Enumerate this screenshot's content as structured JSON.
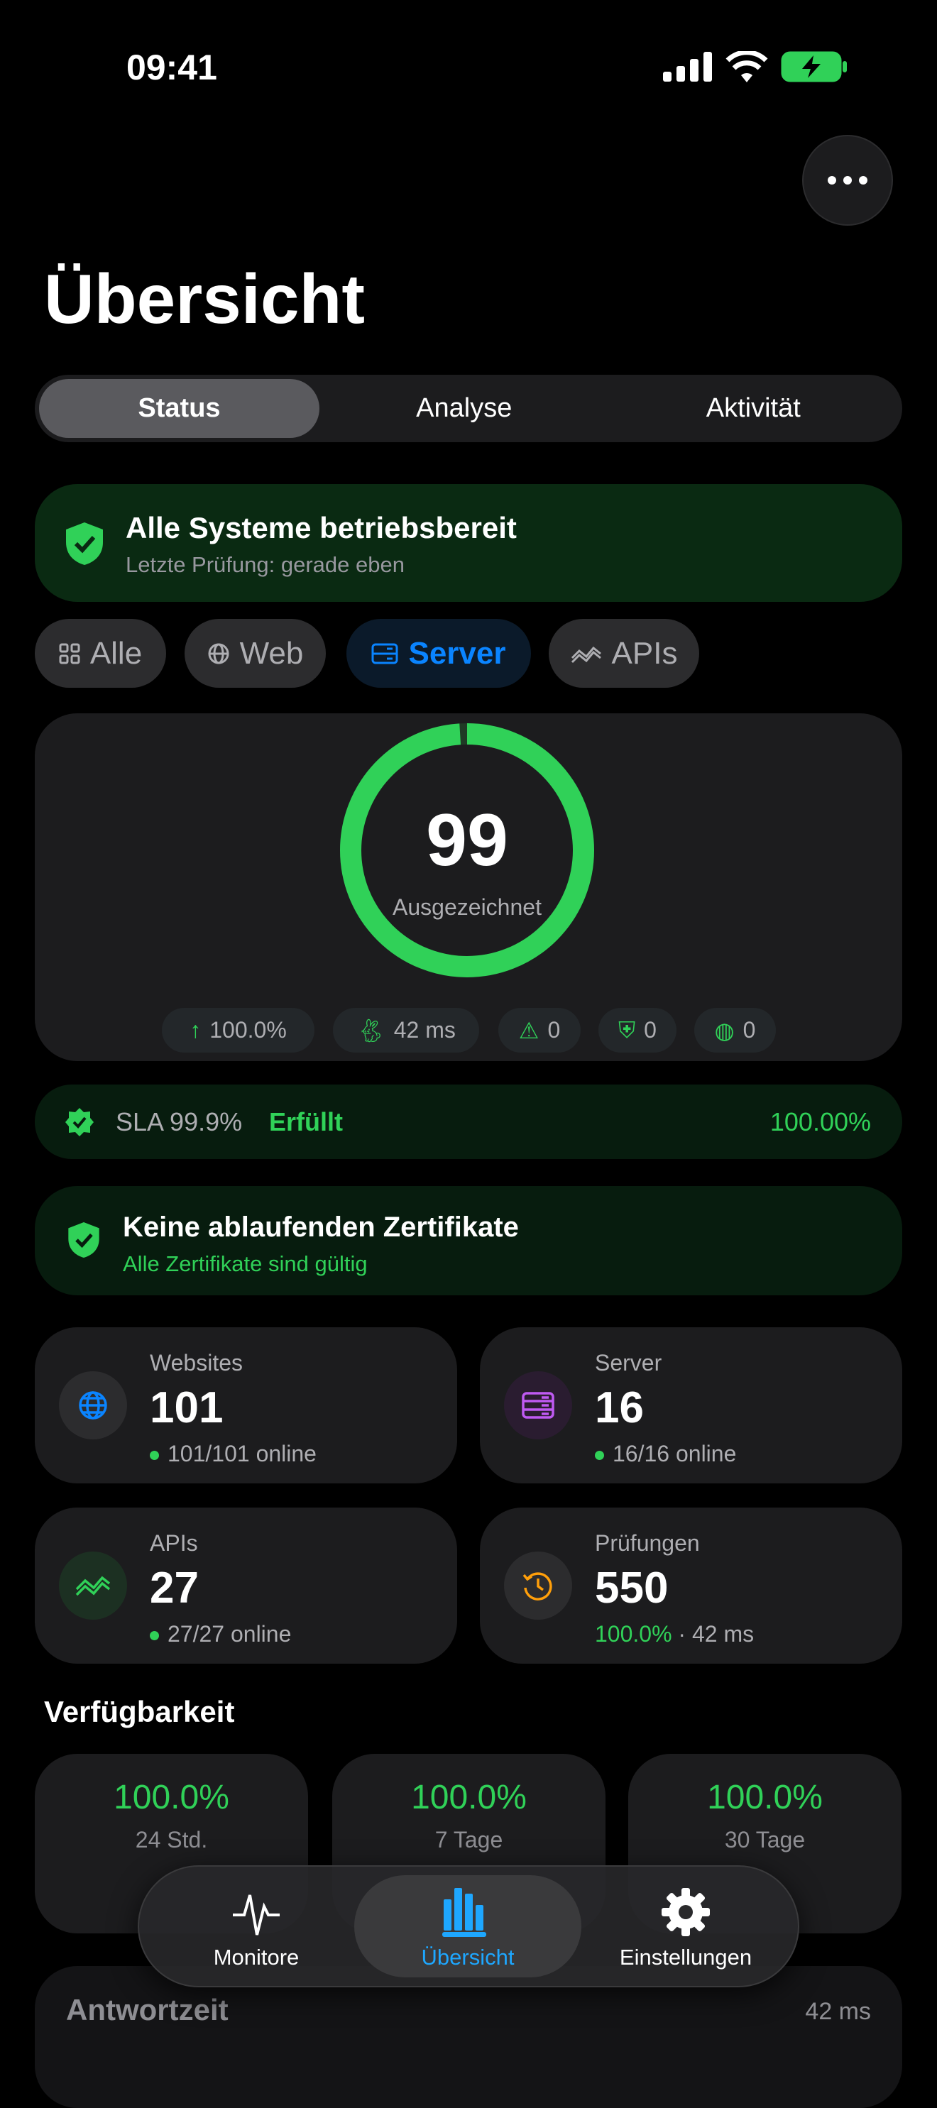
{
  "status_bar": {
    "time": "09:41"
  },
  "header": {
    "title": "Übersicht"
  },
  "segments": [
    {
      "label": "Status",
      "selected": true
    },
    {
      "label": "Analyse"
    },
    {
      "label": "Aktivität"
    }
  ],
  "banner": {
    "title": "Alle Systeme betriebsbereit",
    "subtitle": "Letzte Prüfung: gerade eben"
  },
  "filters": [
    {
      "label": "Alle",
      "icon": "grid-icon"
    },
    {
      "label": "Web",
      "icon": "globe-icon"
    },
    {
      "label": "Server",
      "icon": "server-icon",
      "selected": true
    },
    {
      "label": "APIs",
      "icon": "wave-icon"
    }
  ],
  "score": {
    "value": "99",
    "label": "Ausgezeichnet",
    "fraction": 0.99,
    "color": "#30d158"
  },
  "pills": [
    {
      "icon": "arrow-up-icon",
      "text": "100.0%"
    },
    {
      "icon": "rabbit-icon",
      "text": "42 ms"
    },
    {
      "icon": "warning-icon",
      "text": "0"
    },
    {
      "icon": "shield-lock-icon",
      "text": "0"
    },
    {
      "icon": "globe-badge-icon",
      "text": "0"
    }
  ],
  "sla": {
    "label": "SLA 99.9%",
    "state": "Erfüllt",
    "value": "100.00%"
  },
  "certs": {
    "title": "Keine ablaufenden Zertifikate",
    "subtitle": "Alle Zertifikate sind gültig"
  },
  "stats": [
    {
      "label": "Websites",
      "value": "101",
      "sub": "101/101 online",
      "color": "#0a84ff"
    },
    {
      "label": "Server",
      "value": "16",
      "sub": "16/16 online",
      "color": "#bf5af2"
    },
    {
      "label": "APIs",
      "value": "27",
      "sub": "27/27 online",
      "color": "#30d158"
    },
    {
      "label": "Prüfungen",
      "value": "550",
      "sub_green": "100.0%",
      "sub": " · 42 ms",
      "color": "#ff9f0a"
    }
  ],
  "availability": {
    "heading": "Verfügbarkeit",
    "cards": [
      {
        "value": "100.0%",
        "period": "24 Std."
      },
      {
        "value": "100.0%",
        "period": "7 Tage"
      },
      {
        "value": "100.0%",
        "period": "30 Tage"
      }
    ]
  },
  "response": {
    "title": "Antwortzeit",
    "value": "42 ms"
  },
  "tabbar": [
    {
      "label": "Monitore",
      "icon": "heartbeat-icon"
    },
    {
      "label": "Übersicht",
      "icon": "chart-bars-icon",
      "selected": true
    },
    {
      "label": "Einstellungen",
      "icon": "gear-icon"
    }
  ],
  "colors": {
    "accent": "#0a84ff",
    "green": "#30d158",
    "background": "#000000"
  }
}
